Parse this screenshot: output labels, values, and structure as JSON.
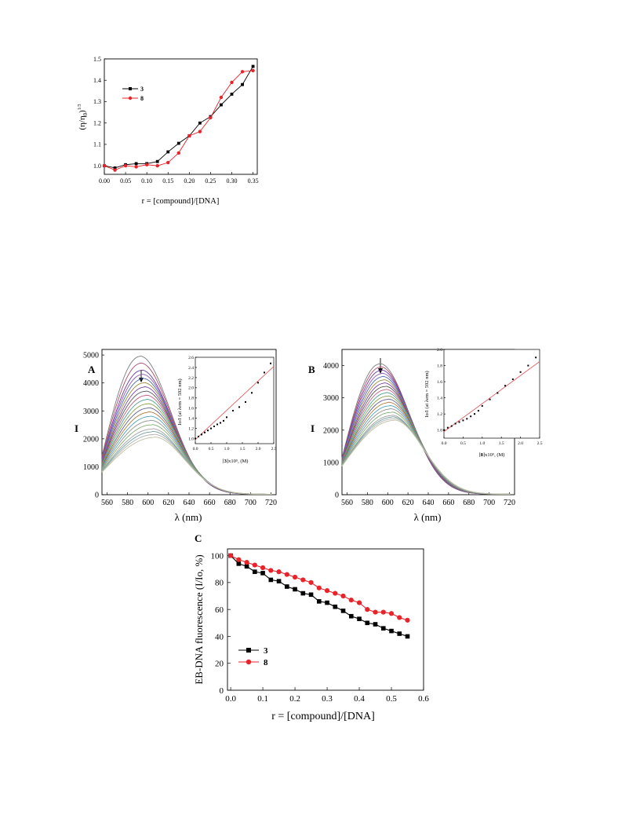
{
  "chart_data": [
    {
      "id": "viscosity",
      "type": "line",
      "xlabel": "r = [compound]/[DNA]",
      "ylabel_base": "(η/η",
      "ylabel_sub": "0",
      "ylabel_close": ")",
      "ylabel_sup": "1/3",
      "xlim": [
        0.0,
        0.36
      ],
      "ylim": [
        0.96,
        1.5
      ],
      "xticks": [
        "0.00",
        "0.05",
        "0.10",
        "0.15",
        "0.20",
        "0.25",
        "0.30",
        "0.35"
      ],
      "xtick_values": [
        0.0,
        0.05,
        0.1,
        0.15,
        0.2,
        0.25,
        0.3,
        0.35
      ],
      "yticks": [
        "1.0",
        "1.1",
        "1.2",
        "1.3",
        "1.4",
        "1.5"
      ],
      "ytick_values": [
        1.0,
        1.1,
        1.2,
        1.3,
        1.4,
        1.5
      ],
      "legend_position": "top-left",
      "series": [
        {
          "name": "3",
          "color": "#000000",
          "marker": "square",
          "x": [
            0.0,
            0.025,
            0.05,
            0.075,
            0.1,
            0.125,
            0.15,
            0.175,
            0.2,
            0.225,
            0.25,
            0.275,
            0.3,
            0.325,
            0.35
          ],
          "y": [
            1.0,
            0.99,
            1.005,
            1.01,
            1.01,
            1.02,
            1.065,
            1.105,
            1.14,
            1.2,
            1.23,
            1.285,
            1.335,
            1.38,
            1.465
          ]
        },
        {
          "name": "8",
          "color": "#e8232a",
          "marker": "circle",
          "x": [
            0.0,
            0.025,
            0.05,
            0.075,
            0.1,
            0.125,
            0.15,
            0.175,
            0.2,
            0.225,
            0.25,
            0.275,
            0.3,
            0.325,
            0.35
          ],
          "y": [
            1.0,
            0.98,
            1.0,
            0.995,
            1.005,
            1.0,
            1.015,
            1.06,
            1.14,
            1.16,
            1.225,
            1.32,
            1.39,
            1.44,
            1.445
          ]
        }
      ]
    },
    {
      "id": "spectraA",
      "type": "line",
      "panel_label": "A",
      "ylabel": "I",
      "xlabel": "λ (nm)",
      "xlim": [
        555,
        725
      ],
      "ylim": [
        0,
        5200
      ],
      "xticks": [
        "560",
        "580",
        "600",
        "620",
        "640",
        "660",
        "680",
        "700",
        "720"
      ],
      "xtick_values": [
        560,
        580,
        600,
        620,
        640,
        660,
        680,
        700,
        720
      ],
      "yticks": [
        "0",
        "1000",
        "2000",
        "3000",
        "4000",
        "5000"
      ],
      "ytick_values": [
        0,
        1000,
        2000,
        3000,
        4000,
        5000
      ],
      "annotation": "arrow at 592 nm pointing down",
      "peaks": [
        4950,
        4700,
        4450,
        4300,
        4150,
        4000,
        3850,
        3700,
        3550,
        3400,
        3250,
        3100,
        2950,
        2800,
        2650,
        2500,
        2350,
        2250,
        2150,
        2050
      ],
      "colors": [
        "#7a7a7a",
        "#b04a6a",
        "#6a3aa0",
        "#8a5ab0",
        "#4a6ab0",
        "#a08a40",
        "#7a40a0",
        "#5a5a5a",
        "#c06080",
        "#4aa090",
        "#8aa050",
        "#606090",
        "#b07a40",
        "#50a0c0",
        "#909090",
        "#80b070",
        "#a0a0a0",
        "#70a0a0",
        "#b0b0b0",
        "#c0c0a0"
      ]
    },
    {
      "id": "insetA",
      "type": "scatter",
      "ylabel": "Io/I (at λem = 592 nm)",
      "xlabel_prefix": "[",
      "xlabel_bold": "3",
      "xlabel_suffix": "]x10⁵, (M)",
      "xlim": [
        0,
        2.5
      ],
      "ylim": [
        0.9,
        2.6
      ],
      "xticks": [
        "0.0",
        "0.5",
        "1.0",
        "1.5",
        "2.0",
        "2.5"
      ],
      "xtick_values": [
        0.0,
        0.5,
        1.0,
        1.5,
        2.0,
        2.5
      ],
      "yticks": [
        "1.0",
        "1.2",
        "1.4",
        "1.6",
        "1.8",
        "2.0",
        "2.2",
        "2.4",
        "2.6"
      ],
      "ytick_values": [
        1.0,
        1.2,
        1.4,
        1.6,
        1.8,
        2.0,
        2.2,
        2.4,
        2.6
      ],
      "x": [
        0.0,
        0.1,
        0.2,
        0.3,
        0.4,
        0.5,
        0.6,
        0.7,
        0.8,
        0.9,
        1.0,
        1.2,
        1.4,
        1.6,
        1.8,
        2.0,
        2.2,
        2.4
      ],
      "y": [
        1.0,
        1.04,
        1.08,
        1.12,
        1.16,
        1.2,
        1.24,
        1.28,
        1.31,
        1.35,
        1.42,
        1.55,
        1.62,
        1.72,
        1.9,
        2.1,
        2.3,
        2.48
      ],
      "fit": [
        0.98,
        2.42
      ]
    },
    {
      "id": "spectraB",
      "type": "line",
      "panel_label": "B",
      "ylabel": "I",
      "xlabel": "λ (nm)",
      "xlim": [
        555,
        725
      ],
      "ylim": [
        0,
        4500
      ],
      "xticks": [
        "560",
        "580",
        "600",
        "620",
        "640",
        "660",
        "680",
        "700",
        "720"
      ],
      "xtick_values": [
        560,
        580,
        600,
        620,
        640,
        660,
        680,
        700,
        720
      ],
      "yticks": [
        "0",
        "1000",
        "2000",
        "3000",
        "4000"
      ],
      "ytick_values": [
        0,
        1000,
        2000,
        3000,
        4000
      ],
      "annotation": "arrow at 592 nm pointing down",
      "peaks": [
        4050,
        3950,
        3850,
        3750,
        3650,
        3550,
        3450,
        3350,
        3250,
        3150,
        3050,
        2950,
        2850,
        2750,
        2650,
        2550,
        2450,
        2400,
        2350,
        2300
      ],
      "colors": [
        "#7a7a7a",
        "#b04a6a",
        "#6a3aa0",
        "#8a5ab0",
        "#4a6ab0",
        "#a08a40",
        "#7a40a0",
        "#5a5a5a",
        "#c06080",
        "#4aa090",
        "#8aa050",
        "#606090",
        "#b07a40",
        "#50a0c0",
        "#909090",
        "#80b070",
        "#a0a0a0",
        "#70a0a0",
        "#b0b0b0",
        "#c0c0a0"
      ]
    },
    {
      "id": "insetB",
      "type": "scatter",
      "ylabel": "Io/I (at λem = 592 nm)",
      "xlabel_prefix": "[",
      "xlabel_bold": "8",
      "xlabel_suffix": "]x10⁵, (M)",
      "xlim": [
        0,
        2.5
      ],
      "ylim": [
        0.9,
        2.0
      ],
      "xticks": [
        "0.0",
        "0.5",
        "1.0",
        "1.5",
        "2.0",
        "2.5"
      ],
      "xtick_values": [
        0.0,
        0.5,
        1.0,
        1.5,
        2.0,
        2.5
      ],
      "yticks": [
        "1.0",
        "1.2",
        "1.4",
        "1.6",
        "1.8",
        "2.0"
      ],
      "ytick_values": [
        1.0,
        1.2,
        1.4,
        1.6,
        1.8,
        2.0
      ],
      "x": [
        0.0,
        0.1,
        0.2,
        0.3,
        0.4,
        0.5,
        0.6,
        0.7,
        0.8,
        0.9,
        1.0,
        1.2,
        1.4,
        1.6,
        1.8,
        2.0,
        2.2,
        2.4
      ],
      "y": [
        1.0,
        1.03,
        1.05,
        1.08,
        1.1,
        1.12,
        1.14,
        1.17,
        1.2,
        1.24,
        1.3,
        1.38,
        1.46,
        1.55,
        1.63,
        1.72,
        1.8,
        1.9
      ],
      "fit": [
        0.98,
        1.85
      ]
    },
    {
      "id": "ebdna",
      "type": "line",
      "panel_label": "C",
      "xlabel": "r = [compound]/[DNA]",
      "ylabel": "EB-DNA fluorescence (I/Io, %)",
      "xlim": [
        -0.01,
        0.6
      ],
      "ylim": [
        0,
        105
      ],
      "xticks": [
        "0.0",
        "0.1",
        "0.2",
        "0.3",
        "0.4",
        "0.5",
        "0.6"
      ],
      "xtick_values": [
        0.0,
        0.1,
        0.2,
        0.3,
        0.4,
        0.5,
        0.6
      ],
      "yticks": [
        "0",
        "20",
        "40",
        "60",
        "80",
        "100"
      ],
      "ytick_values": [
        0,
        20,
        40,
        60,
        80,
        100
      ],
      "legend_position": "bottom-left",
      "series": [
        {
          "name": "3",
          "color": "#000000",
          "marker": "square",
          "x": [
            0.0,
            0.025,
            0.05,
            0.075,
            0.1,
            0.125,
            0.15,
            0.175,
            0.2,
            0.225,
            0.25,
            0.275,
            0.3,
            0.325,
            0.35,
            0.375,
            0.4,
            0.425,
            0.45,
            0.475,
            0.5,
            0.525,
            0.55
          ],
          "y": [
            100,
            94,
            92,
            88,
            87,
            82,
            81,
            77,
            75,
            72,
            71,
            66,
            65,
            62,
            59,
            55,
            53,
            50,
            49,
            46,
            44,
            42,
            40
          ]
        },
        {
          "name": "8",
          "color": "#e8232a",
          "marker": "circle",
          "x": [
            0.0,
            0.025,
            0.05,
            0.075,
            0.1,
            0.125,
            0.15,
            0.175,
            0.2,
            0.225,
            0.25,
            0.275,
            0.3,
            0.325,
            0.35,
            0.375,
            0.4,
            0.425,
            0.45,
            0.475,
            0.5,
            0.525,
            0.55
          ],
          "y": [
            100,
            97,
            95,
            93,
            91,
            89,
            88,
            86,
            84,
            82,
            80,
            76,
            74,
            72,
            70,
            67,
            65,
            60,
            58,
            58,
            57,
            54,
            52
          ]
        }
      ]
    }
  ]
}
